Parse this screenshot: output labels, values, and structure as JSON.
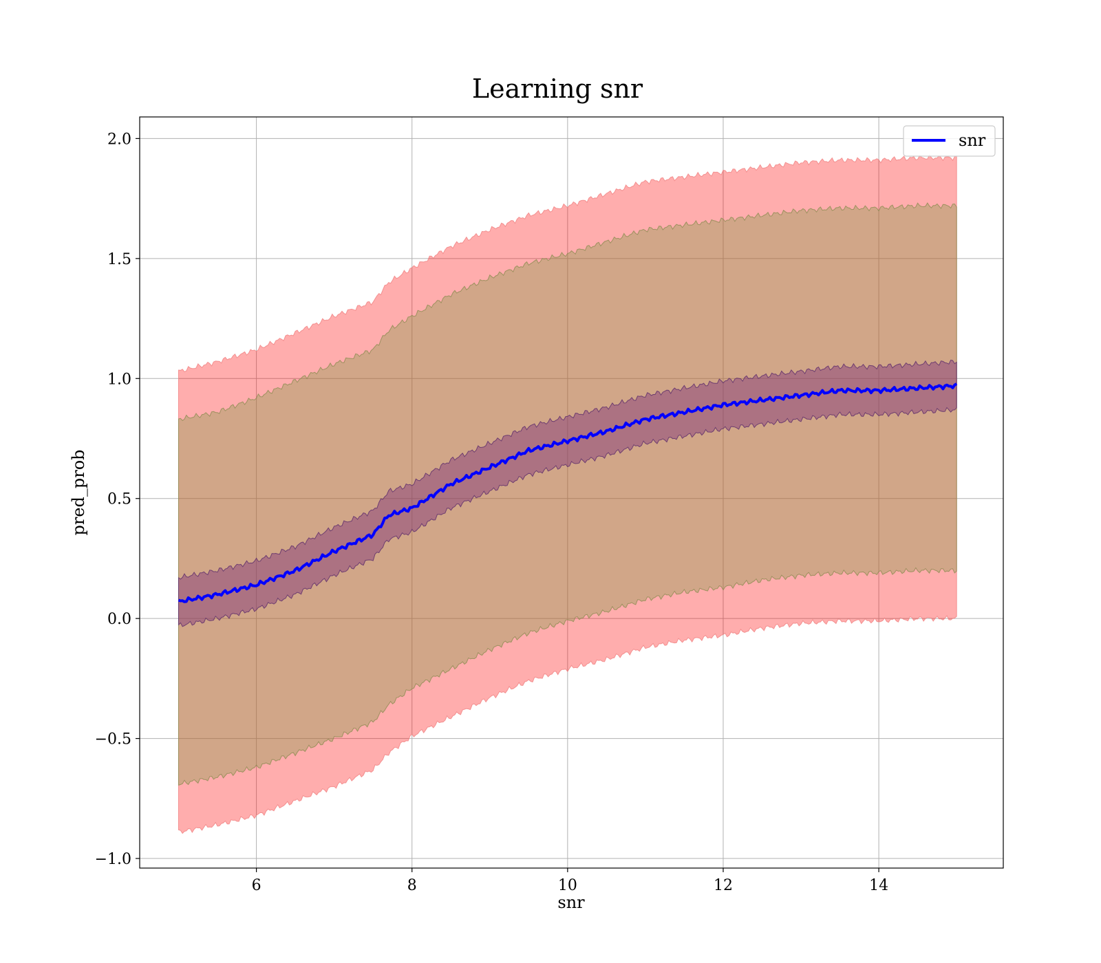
{
  "chart_data": {
    "type": "line",
    "title": "Learning snr",
    "xlabel": "snr",
    "ylabel": "pred_prob",
    "xlim": [
      4.5,
      15.6
    ],
    "ylim": [
      -1.04,
      2.09
    ],
    "xticks": [
      6,
      8,
      10,
      12,
      14
    ],
    "xtick_labels": [
      "6",
      "8",
      "10",
      "12",
      "14"
    ],
    "yticks": [
      -1.0,
      -0.5,
      0.0,
      0.5,
      1.0,
      1.5,
      2.0
    ],
    "ytick_labels": [
      "−1.0",
      "−0.5",
      "0.0",
      "0.5",
      "1.0",
      "1.5",
      "2.0"
    ],
    "grid": true,
    "legend_position": "top-right",
    "x": [
      5.0,
      5.5,
      6.0,
      6.5,
      7.0,
      7.5,
      7.7,
      8.0,
      8.5,
      9.0,
      9.5,
      10.0,
      10.5,
      11.0,
      11.5,
      12.0,
      12.5,
      13.0,
      13.5,
      14.0,
      14.5,
      15.0
    ],
    "series": [
      {
        "name": "snr",
        "color": "#0000ff",
        "values": [
          0.07,
          0.1,
          0.14,
          0.2,
          0.28,
          0.35,
          0.43,
          0.46,
          0.56,
          0.63,
          0.7,
          0.74,
          0.78,
          0.83,
          0.86,
          0.89,
          0.91,
          0.93,
          0.95,
          0.95,
          0.96,
          0.97
        ]
      }
    ],
    "bands": [
      {
        "fill": "#ff0000",
        "opacity": 0.32,
        "stroke": "#f08080",
        "upper": [
          1.03,
          1.07,
          1.12,
          1.19,
          1.26,
          1.32,
          1.4,
          1.46,
          1.55,
          1.62,
          1.68,
          1.72,
          1.77,
          1.82,
          1.84,
          1.86,
          1.88,
          1.9,
          1.91,
          1.91,
          1.92,
          1.92
        ],
        "lower": [
          -0.89,
          -0.86,
          -0.82,
          -0.76,
          -0.7,
          -0.63,
          -0.56,
          -0.49,
          -0.41,
          -0.33,
          -0.26,
          -0.21,
          -0.17,
          -0.12,
          -0.09,
          -0.07,
          -0.04,
          -0.02,
          -0.01,
          -0.01,
          0.0,
          0.0
        ]
      },
      {
        "fill": "#8b9a50",
        "opacity": 0.4,
        "stroke": "#8b8b50",
        "upper": [
          0.83,
          0.86,
          0.92,
          0.99,
          1.06,
          1.12,
          1.2,
          1.26,
          1.35,
          1.42,
          1.48,
          1.52,
          1.57,
          1.62,
          1.64,
          1.66,
          1.68,
          1.7,
          1.71,
          1.71,
          1.72,
          1.72
        ],
        "lower": [
          -0.69,
          -0.66,
          -0.62,
          -0.56,
          -0.5,
          -0.43,
          -0.36,
          -0.29,
          -0.21,
          -0.13,
          -0.06,
          -0.01,
          0.03,
          0.08,
          0.11,
          0.13,
          0.16,
          0.18,
          0.19,
          0.19,
          0.2,
          0.2
        ]
      },
      {
        "fill": "#7a2a7a",
        "opacity": 0.42,
        "stroke": "#5a2a6a",
        "upper": [
          0.17,
          0.2,
          0.24,
          0.3,
          0.38,
          0.45,
          0.53,
          0.56,
          0.66,
          0.73,
          0.8,
          0.84,
          0.88,
          0.93,
          0.96,
          0.99,
          1.01,
          1.03,
          1.05,
          1.05,
          1.06,
          1.07
        ],
        "lower": [
          -0.03,
          0.0,
          0.04,
          0.1,
          0.18,
          0.25,
          0.33,
          0.36,
          0.46,
          0.53,
          0.6,
          0.64,
          0.68,
          0.73,
          0.76,
          0.79,
          0.81,
          0.83,
          0.85,
          0.85,
          0.86,
          0.87
        ]
      }
    ]
  }
}
